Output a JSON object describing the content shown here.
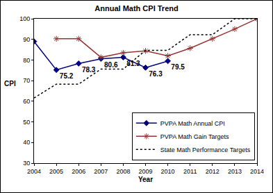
{
  "chart_data": {
    "type": "line",
    "title": "Annual Math CPI Trend",
    "x_label": "Year",
    "y_label": "CPI",
    "x": [
      2004,
      2005,
      2006,
      2007,
      2008,
      2009,
      2010,
      2011,
      2012,
      2013,
      2014
    ],
    "xlim": [
      2004,
      2014
    ],
    "xticks": [
      2004,
      2005,
      2006,
      2007,
      2008,
      2009,
      2010,
      2011,
      2012,
      2013,
      2014
    ],
    "ylim": [
      30,
      100
    ],
    "yticks": [
      30,
      40,
      50,
      60,
      70,
      80,
      90,
      100
    ],
    "grid": false,
    "legend": "lower right",
    "series": [
      {
        "name": "PVPA Math Annual CPI",
        "color": "#000080",
        "marker": "diamond",
        "line_style": "solid",
        "data_labels": true,
        "values": [
          89,
          75.2,
          78.3,
          80.6,
          81.3,
          76.3,
          79.5,
          null,
          null,
          null,
          null
        ],
        "value_labels": [
          null,
          "75.2",
          "78.3",
          "80.6",
          "81.3",
          "76.3",
          "79.5",
          null,
          null,
          null,
          null
        ]
      },
      {
        "name": "PVPA Math Gain Targets",
        "color": "#993333",
        "marker": "asterisk",
        "line_style": "solid",
        "values": [
          null,
          90.3,
          90.3,
          81.3,
          83.5,
          84.4,
          82,
          85.7,
          90.3,
          95,
          100
        ]
      },
      {
        "name": "State Math Performance Targets",
        "color": "#000000",
        "marker": "none",
        "line_style": "dot",
        "values": [
          61.6,
          68.3,
          68.3,
          75.6,
          75.6,
          84.7,
          84.7,
          92.3,
          92.3,
          100,
          100
        ]
      }
    ]
  }
}
